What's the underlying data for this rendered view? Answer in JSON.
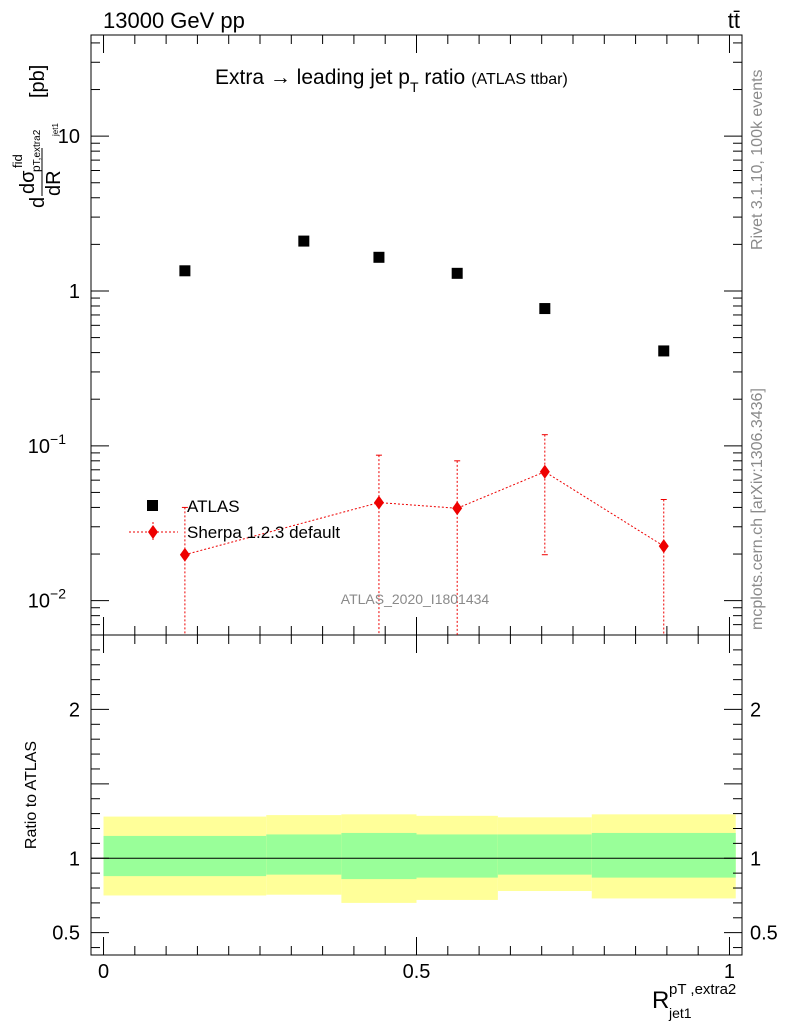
{
  "header": {
    "left": "13000 GeV pp",
    "right": "tt̄"
  },
  "title": {
    "main": "Extra → leading jet p",
    "sub": "T",
    "tail": " ratio",
    "small": "(ATLAS ttbar)"
  },
  "side_labels": {
    "rivet": "Rivet 3.1.10,  100k events",
    "mcplots": "mcplots.cern.ch [arXiv:1306.3436]"
  },
  "watermark": "ATLAS_2020_I1801434",
  "legend": {
    "data": "ATLAS",
    "mc": "Sherpa 1.2.3 default"
  },
  "y_label_upper": {
    "d": "d",
    "sigma": "dσ",
    "fid": "fid",
    "sub": "p",
    "subsub": "T,extra2",
    "jet": "jet1",
    "dR": "dR",
    "unit": "[pb]"
  },
  "y_label_lower": "Ratio to ATLAS",
  "x_label": {
    "main": "R",
    "sup": "pT ,extra2",
    "sub": "jet1"
  },
  "colors": {
    "data": "#000000",
    "mc": "#ee0000",
    "band_inner": "#99ff99",
    "band_outer": "#ffff99"
  },
  "chart_data": [
    {
      "type": "scatter",
      "panel": "upper",
      "yscale": "log",
      "xlim": [
        -0.02,
        1.02
      ],
      "ylim": [
        0.006,
        45
      ],
      "y_ticks": [
        {
          "v": 0.01,
          "label": "10",
          "exp": "−2"
        },
        {
          "v": 0.1,
          "label": "10",
          "exp": "−1"
        },
        {
          "v": 1,
          "label": "1",
          "exp": ""
        },
        {
          "v": 10,
          "label": "10",
          "exp": ""
        }
      ],
      "series": [
        {
          "name": "ATLAS",
          "marker": "square",
          "x": [
            0.13,
            0.32,
            0.44,
            0.565,
            0.705,
            0.895
          ],
          "y": [
            1.35,
            2.1,
            1.65,
            1.3,
            0.77,
            0.41
          ]
        },
        {
          "name": "Sherpa 1.2.3 default",
          "marker": "diamond",
          "x": [
            0.13,
            0.44,
            0.565,
            0.705,
            0.895
          ],
          "y": [
            0.0198,
            0.043,
            0.0395,
            0.068,
            0.0225
          ],
          "y_low": [
            0.001,
            0.001,
            0.001,
            0.0198,
            0.001
          ],
          "y_high": [
            0.04,
            0.087,
            0.08,
            0.118,
            0.045
          ]
        }
      ]
    },
    {
      "type": "area",
      "panel": "lower",
      "ylabel": "Ratio to ATLAS",
      "xlabel": "R jet1 pT,extra2",
      "xlim": [
        -0.02,
        1.02
      ],
      "ylim": [
        0.35,
        2.5
      ],
      "x_ticks": [
        {
          "v": 0,
          "label": "0"
        },
        {
          "v": 0.5,
          "label": "0.5"
        },
        {
          "v": 1,
          "label": "1"
        }
      ],
      "y_ticks": [
        {
          "v": 0.5,
          "label": "0.5"
        },
        {
          "v": 1,
          "label": "1"
        },
        {
          "v": 2,
          "label": "2"
        }
      ],
      "bins": [
        0.0,
        0.26,
        0.38,
        0.5,
        0.63,
        0.78,
        1.01
      ],
      "inner_low": [
        0.88,
        0.89,
        0.86,
        0.87,
        0.89,
        0.87
      ],
      "inner_high": [
        1.15,
        1.16,
        1.17,
        1.16,
        1.16,
        1.17
      ],
      "outer_low": [
        0.75,
        0.755,
        0.7,
        0.72,
        0.78,
        0.73
      ],
      "outer_high": [
        1.28,
        1.29,
        1.295,
        1.285,
        1.275,
        1.295
      ],
      "reference": 1.0
    }
  ]
}
